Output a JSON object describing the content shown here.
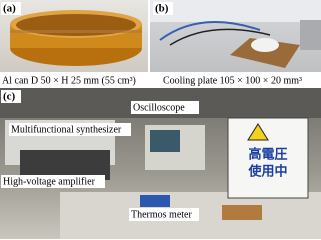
{
  "panels": {
    "a": {
      "label": "(a)",
      "caption": "Al can D 50 × H 25 mm (55 cm³)"
    },
    "b": {
      "label": "(b)",
      "caption": "Cooling plate 105 × 100 × 20 mm³"
    },
    "c": {
      "label": "(c)",
      "annotations": [
        "Oscilloscope",
        "Multifunctional synthesizer",
        "High-voltage amplifier",
        "Thermos meter"
      ],
      "sign": [
        "高電圧",
        "使用中"
      ]
    }
  }
}
